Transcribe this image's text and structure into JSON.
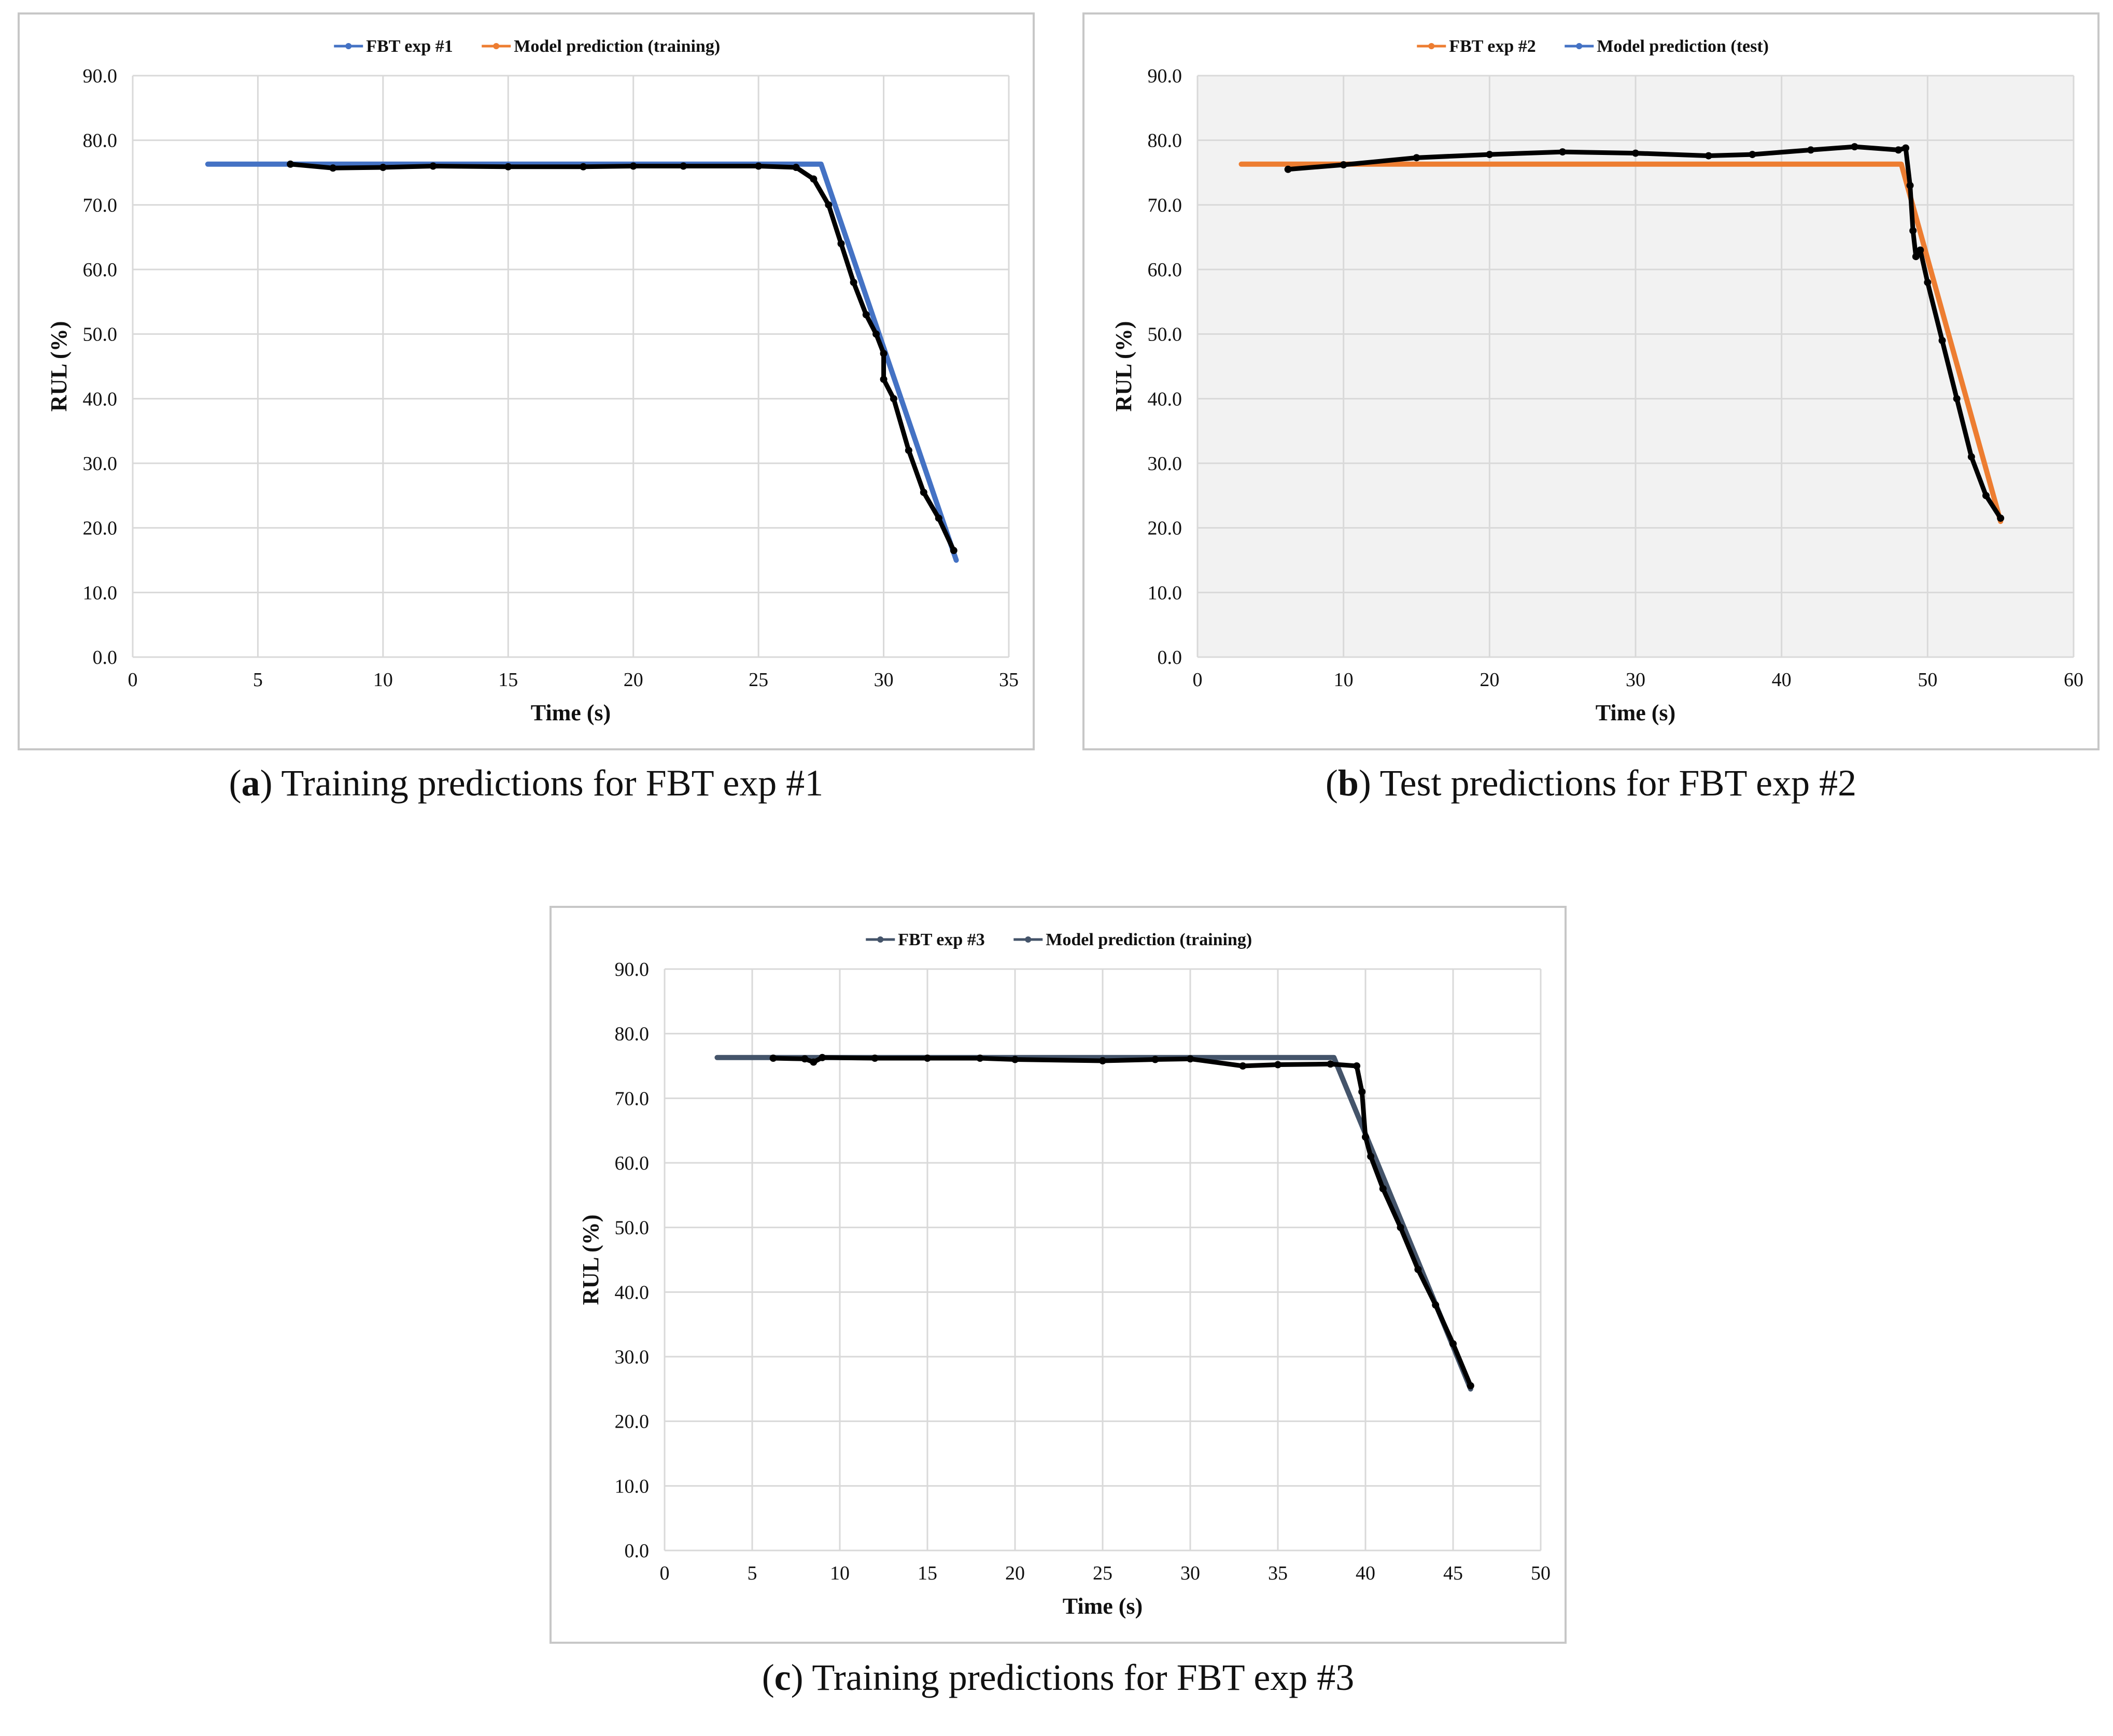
{
  "captions": [
    {
      "letter": "a",
      "text": ") Training predictions for FBT exp #1"
    },
    {
      "letter": "b",
      "text": ") Test predictions for FBT exp #2"
    },
    {
      "letter": "c",
      "text": ") Training predictions for FBT exp #3"
    }
  ],
  "colors": {
    "blue": "#4472c4",
    "orange": "#ed7d31",
    "slate": "#44546a",
    "black": "#000000",
    "grid": "#d9d9d9",
    "plot_bg_b": "#f2f2f2"
  },
  "chart_data": [
    {
      "type": "line",
      "xlabel": "Time (s)",
      "ylabel": "RUL (%)",
      "xlim": [
        0,
        35
      ],
      "xticks": [
        "0",
        "5",
        "10",
        "15",
        "20",
        "25",
        "30",
        "35"
      ],
      "ylim": [
        0,
        90
      ],
      "yticks": [
        "0.0",
        "10.0",
        "20.0",
        "30.0",
        "40.0",
        "50.0",
        "60.0",
        "70.0",
        "80.0",
        "90.0"
      ],
      "grid": true,
      "legend_position": "top-center",
      "series": [
        {
          "name": "FBT exp #1",
          "color": "blue",
          "x": [
            3.0,
            27.5,
            32.9
          ],
          "y": [
            76.3,
            76.3,
            15.0
          ]
        },
        {
          "name": "Model prediction (training)",
          "color": "black",
          "legend_color": "orange",
          "x": [
            6.3,
            8.0,
            10.0,
            12.0,
            15.0,
            18.0,
            20.0,
            22.0,
            25.0,
            26.5,
            27.2,
            27.8,
            28.3,
            28.8,
            29.3,
            29.7,
            30.0,
            30.0,
            30.4,
            31.0,
            31.6,
            32.2,
            32.8
          ],
          "y": [
            76.3,
            75.7,
            75.8,
            76.0,
            75.9,
            75.9,
            76.0,
            76.0,
            76.0,
            75.8,
            74.0,
            70.0,
            64.0,
            58.0,
            53.0,
            50.0,
            47.0,
            43.0,
            40.0,
            32.0,
            25.5,
            21.5,
            16.5
          ]
        }
      ]
    },
    {
      "type": "line",
      "xlabel": "Time (s)",
      "ylabel": "RUL (%)",
      "xlim": [
        0,
        60
      ],
      "xticks": [
        "0",
        "10",
        "20",
        "30",
        "40",
        "50",
        "60"
      ],
      "ylim": [
        0,
        90
      ],
      "yticks": [
        "0.0",
        "10.0",
        "20.0",
        "30.0",
        "40.0",
        "50.0",
        "60.0",
        "70.0",
        "80.0",
        "90.0"
      ],
      "grid": true,
      "legend_position": "top-center",
      "series": [
        {
          "name": "FBT exp #2",
          "color": "orange",
          "x": [
            3.0,
            48.2,
            55.0
          ],
          "y": [
            76.3,
            76.3,
            21.0
          ]
        },
        {
          "name": "Model prediction (test)",
          "color": "black",
          "legend_color": "blue",
          "x": [
            6.2,
            10.0,
            15.0,
            20.0,
            25.0,
            30.0,
            35.0,
            38.0,
            42.0,
            45.0,
            48.0,
            48.5,
            48.8,
            49.0,
            49.2,
            49.5,
            50.0,
            51.0,
            52.0,
            53.0,
            54.0,
            55.0
          ],
          "y": [
            75.5,
            76.2,
            77.3,
            77.8,
            78.2,
            78.0,
            77.6,
            77.8,
            78.5,
            79.0,
            78.5,
            78.8,
            73.0,
            66.0,
            62.0,
            63.0,
            58.0,
            49.0,
            40.0,
            31.0,
            25.0,
            21.5
          ]
        }
      ]
    },
    {
      "type": "line",
      "xlabel": "Time (s)",
      "ylabel": "RUL (%)",
      "xlim": [
        0,
        50
      ],
      "xticks": [
        "0",
        "5",
        "10",
        "15",
        "20",
        "25",
        "30",
        "35",
        "40",
        "45",
        "50"
      ],
      "ylim": [
        0,
        90
      ],
      "yticks": [
        "0.0",
        "10.0",
        "20.0",
        "30.0",
        "40.0",
        "50.0",
        "60.0",
        "70.0",
        "80.0",
        "90.0"
      ],
      "grid": true,
      "legend_position": "top-center",
      "series": [
        {
          "name": "FBT exp #3",
          "color": "slate",
          "x": [
            3.0,
            38.2,
            46.0
          ],
          "y": [
            76.3,
            76.3,
            25.0
          ]
        },
        {
          "name": "Model prediction (training)",
          "color": "black",
          "legend_color": "slate",
          "x": [
            6.2,
            8.0,
            8.5,
            9.0,
            12.0,
            15.0,
            18.0,
            20.0,
            25.0,
            28.0,
            30.0,
            33.0,
            35.0,
            38.0,
            39.5,
            39.8,
            40.0,
            40.3,
            41.0,
            42.0,
            43.0,
            44.0,
            45.0,
            46.0
          ],
          "y": [
            76.2,
            76.1,
            75.6,
            76.3,
            76.2,
            76.2,
            76.2,
            76.0,
            75.8,
            76.0,
            76.1,
            75.0,
            75.2,
            75.3,
            75.0,
            71.0,
            64.0,
            61.0,
            56.0,
            50.0,
            43.5,
            38.0,
            32.0,
            25.5
          ]
        }
      ]
    }
  ]
}
